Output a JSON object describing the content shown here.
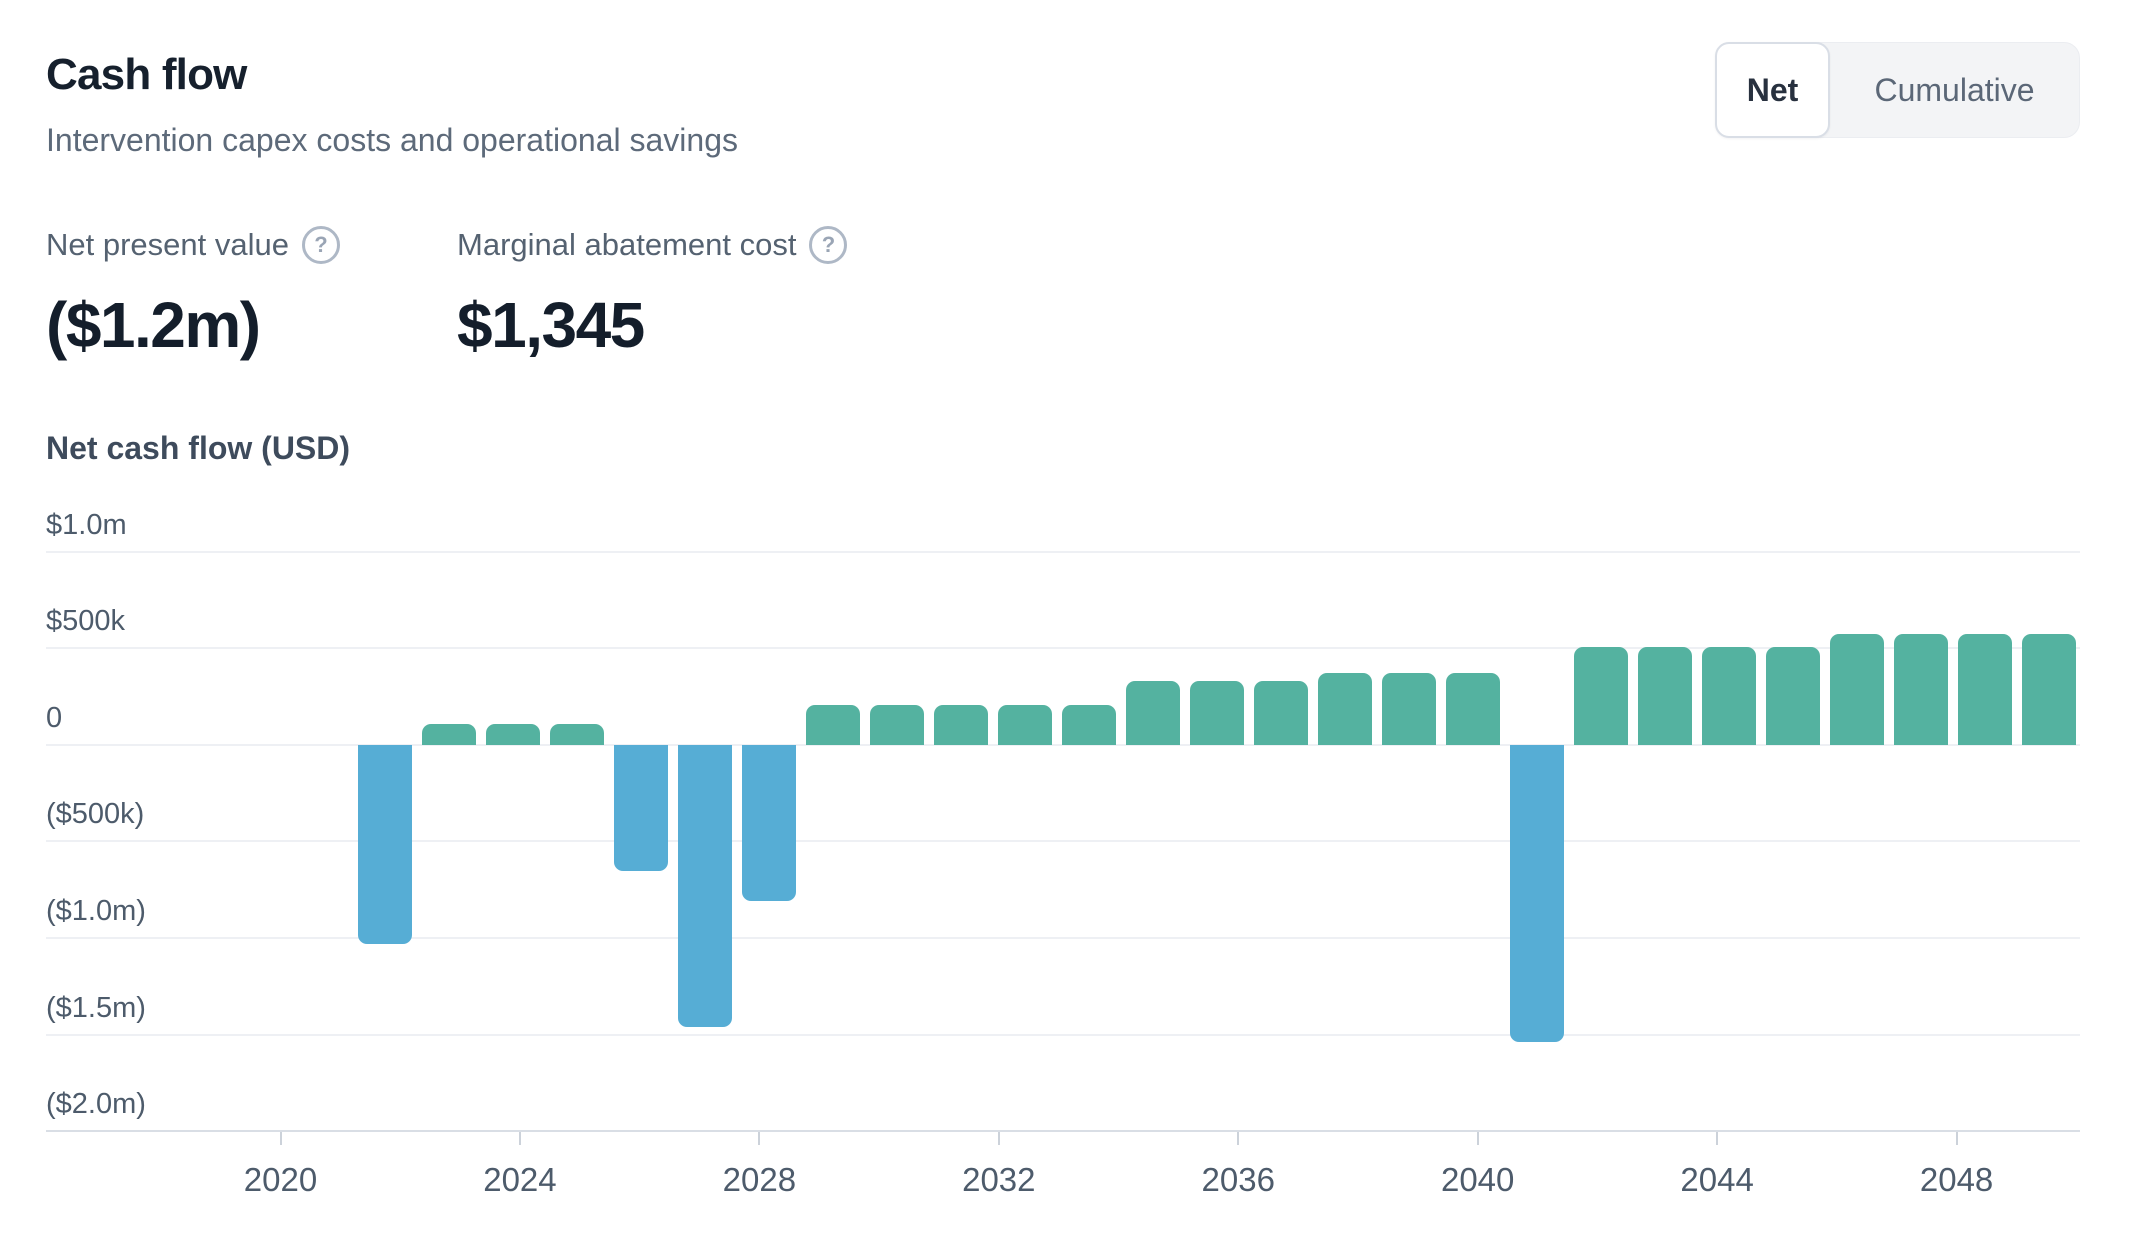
{
  "header": {
    "title": "Cash flow",
    "subtitle": "Intervention capex costs and operational savings"
  },
  "toggle": {
    "options": [
      {
        "label": "Net",
        "selected": true
      },
      {
        "label": "Cumulative",
        "selected": false
      }
    ]
  },
  "kpis": [
    {
      "label": "Net present value",
      "value": "($1.2m)",
      "icon": "help-circle-icon"
    },
    {
      "label": "Marginal abatement cost",
      "value": "$1,345",
      "icon": "help-circle-icon"
    }
  ],
  "chart_data": {
    "type": "bar",
    "title": "Net cash flow (USD)",
    "xlabel": "",
    "ylabel": "Net cash flow (USD)",
    "years": [
      2022,
      2023,
      2024,
      2025,
      2026,
      2027,
      2028,
      2029,
      2030,
      2031,
      2032,
      2033,
      2034,
      2035,
      2036,
      2037,
      2038,
      2039,
      2040,
      2041,
      2042,
      2043,
      2044,
      2045,
      2046,
      2047,
      2048
    ],
    "values": [
      -1030000,
      110000,
      110000,
      110000,
      -655000,
      -1460000,
      -810000,
      205000,
      205000,
      205000,
      205000,
      205000,
      330000,
      330000,
      330000,
      370000,
      370000,
      370000,
      -1540000,
      505000,
      505000,
      505000,
      505000,
      575000,
      575000,
      575000,
      575000
    ],
    "y_tick_labels": [
      "$1.0m",
      "$500k",
      "0",
      "($500k)",
      "($1.0m)",
      "($1.5m)",
      "($2.0m)"
    ],
    "y_tick_values": [
      1000000,
      500000,
      0,
      -500000,
      -1000000,
      -1500000,
      -2000000
    ],
    "x_ticks": [
      2020,
      2024,
      2028,
      2032,
      2036,
      2040,
      2044,
      2048
    ],
    "ylim": [
      -2000000,
      1000000
    ],
    "grid": true,
    "legend": "none",
    "colors": {
      "positive": "#54b2a0",
      "negative": "#56add5"
    }
  }
}
